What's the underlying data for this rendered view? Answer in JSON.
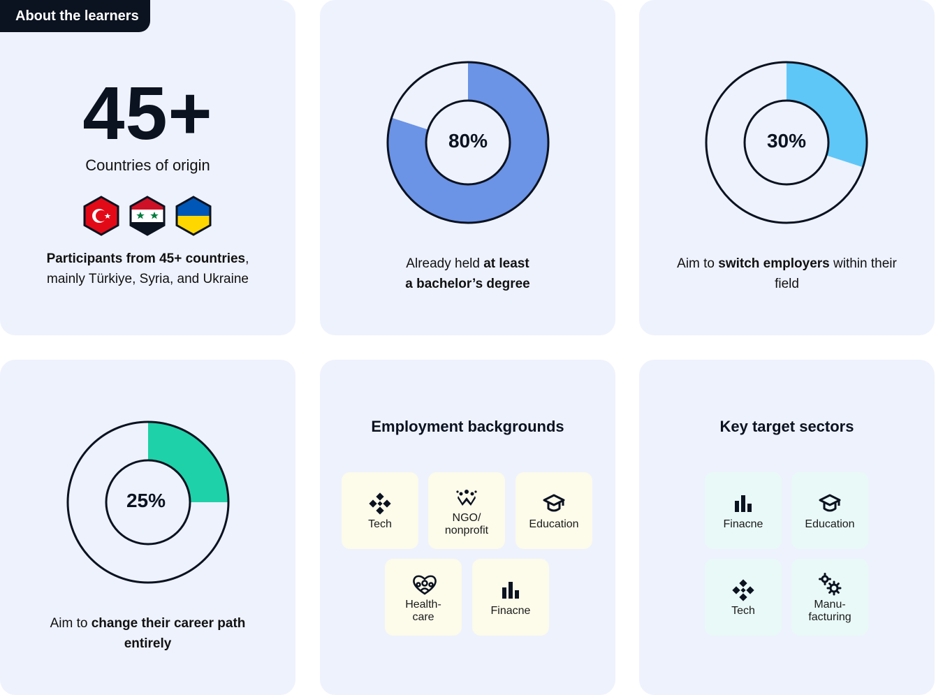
{
  "header": {
    "tag": "About the learners"
  },
  "countries": {
    "value": "45+",
    "label": "Countries of origin",
    "flags": [
      "turkey-flag-icon",
      "syria-flag-icon",
      "ukraine-flag-icon"
    ],
    "desc_bold": "Participants from 45+ countries",
    "desc_rest_1": ",",
    "desc_rest_2": "mainly Türkiye, Syria, and Ukraine"
  },
  "chart_data": [
    {
      "type": "pie",
      "values": [
        80,
        20
      ],
      "center_label": "80%",
      "colors": [
        "#6b93e6",
        "#eef2fd"
      ],
      "caption": {
        "pre": "Already held ",
        "bold": "at least",
        "line2_bold": "a bachelor’s degree"
      }
    },
    {
      "type": "pie",
      "values": [
        30,
        70
      ],
      "center_label": "30%",
      "colors": [
        "#5ec7f7",
        "#eef2fd"
      ],
      "caption": {
        "pre": "Aim to ",
        "bold": "switch employers",
        "post": " within their",
        "line2": "field"
      }
    },
    {
      "type": "pie",
      "values": [
        25,
        75
      ],
      "center_label": "25%",
      "colors": [
        "#1fd1a8",
        "#eef2fd"
      ],
      "caption": {
        "pre": "Aim to ",
        "bold": "change their career path",
        "line2_bold": "entirely"
      }
    }
  ],
  "employment": {
    "title": "Employment backgrounds",
    "tiles": [
      {
        "icon": "tech-icon",
        "label1": "Tech",
        "label2": ""
      },
      {
        "icon": "ngo-icon",
        "label1": "NGO/",
        "label2": "nonprofit"
      },
      {
        "icon": "education-icon",
        "label1": "Education",
        "label2": ""
      },
      {
        "icon": "healthcare-icon",
        "label1": "Health-",
        "label2": "care"
      },
      {
        "icon": "finance-icon",
        "label1": "Finacne",
        "label2": ""
      }
    ]
  },
  "sectors": {
    "title": "Key target sectors",
    "tiles": [
      {
        "icon": "finance-icon",
        "label1": "Finacne",
        "label2": ""
      },
      {
        "icon": "education-icon",
        "label1": "Education",
        "label2": ""
      },
      {
        "icon": "tech-icon",
        "label1": "Tech",
        "label2": ""
      },
      {
        "icon": "gears-icon",
        "label1": "Manu-",
        "label2": "facturing"
      }
    ]
  }
}
